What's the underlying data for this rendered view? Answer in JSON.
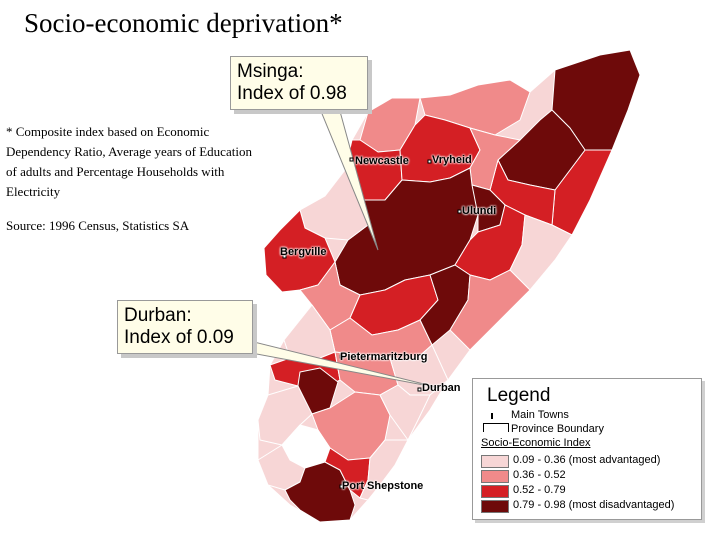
{
  "title": "Socio-economic deprivation*",
  "note": "* Composite index based on Economic Dependency Ratio, Average years of Education of adults and Percentage Households with Electricity",
  "source": "Source: 1996 Census, Statistics SA",
  "callouts": {
    "msinga": {
      "line1": "Msinga:",
      "line2": "Index of 0.98"
    },
    "durban": {
      "line1": "Durban:",
      "line2": "Index of 0.09"
    }
  },
  "towns": {
    "newcastle": "Newcastle",
    "vryheid": "Vryheid",
    "ulundi": "Ulundi",
    "bergville": "Bergville",
    "pietermaritzburg": "Pietermaritzburg",
    "durban": "Durban",
    "port_shepstone": "Port Shepstone"
  },
  "legend": {
    "title": "Legend",
    "main_towns": "Main Towns",
    "province_boundary": "Province Boundary",
    "index_heading": "Socio-Economic Index",
    "classes": [
      {
        "label": "0.09 - 0.36 (most advantaged)",
        "color": "#f7d6d6"
      },
      {
        "label": "0.36 - 0.52",
        "color": "#f08a8a"
      },
      {
        "label": "0.52 - 0.79",
        "color": "#d41f24"
      },
      {
        "label": "0.79 - 0.98 (most disadvantaged)",
        "color": "#6e0a0a"
      }
    ]
  },
  "colors": {
    "c1": "#f7d6d6",
    "c2": "#f08a8a",
    "c3": "#d41f24",
    "c4": "#6e0a0a",
    "boundary": "#ffffff"
  }
}
